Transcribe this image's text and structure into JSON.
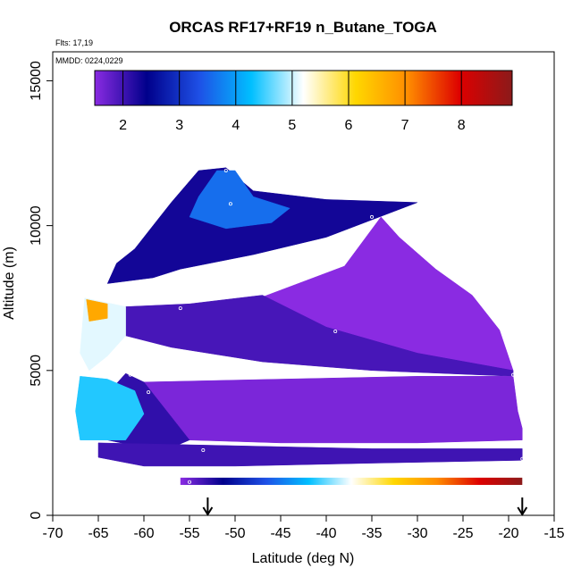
{
  "chart_data": {
    "type": "heatmap",
    "title": "ORCAS RF17+RF19 n_Butane_TOGA",
    "annotations": [
      "Flts: 17,19",
      "MMDD: 0224,0229"
    ],
    "xlabel": "Latitude (deg N)",
    "ylabel": "Altitude (m)",
    "xlim": [
      -70,
      -15
    ],
    "ylim": [
      0,
      16000
    ],
    "x_ticks": [
      -70,
      -65,
      -60,
      -55,
      -50,
      -45,
      -40,
      -35,
      -30,
      -25,
      -20,
      -15
    ],
    "y_ticks": [
      0,
      5000,
      10000,
      15000
    ],
    "colorbar": {
      "range": [
        1.5,
        8.9
      ],
      "ticks": [
        2,
        3,
        4,
        5,
        6,
        7,
        8
      ],
      "colors": [
        "#8a2be2",
        "#00008b",
        "#1e50e6",
        "#00bfff",
        "#ffffff",
        "#ffd700",
        "#ff8c00",
        "#dd0000",
        "#8b1a1a"
      ]
    },
    "sample_points": [
      {
        "x": -51,
        "y": 11900
      },
      {
        "x": -50.5,
        "y": 10750
      },
      {
        "x": -35,
        "y": 10300
      },
      {
        "x": -56,
        "y": 7150
      },
      {
        "x": -39,
        "y": 6350
      },
      {
        "x": -61.5,
        "y": 4850
      },
      {
        "x": -59.5,
        "y": 4250
      },
      {
        "x": -19.5,
        "y": 4850
      },
      {
        "x": -53.5,
        "y": 2250
      },
      {
        "x": -18.5,
        "y": 1950
      },
      {
        "x": -18.5,
        "y": 1650
      },
      {
        "x": -55,
        "y": 1150
      }
    ],
    "arrow_markers": [
      -53,
      -18.5
    ],
    "regions": [
      {
        "value": 2.3,
        "polygon": [
          [
            -54,
            11900
          ],
          [
            -51,
            12000
          ],
          [
            -48,
            11200
          ],
          [
            -40,
            10900
          ],
          [
            -30,
            10800
          ],
          [
            -40,
            9600
          ],
          [
            -48,
            9000
          ],
          [
            -56,
            8500
          ],
          [
            -59,
            8200
          ],
          [
            -64,
            8000
          ],
          [
            -63,
            8700
          ],
          [
            -61,
            9200
          ],
          [
            -59,
            10000
          ],
          [
            -57,
            10800
          ]
        ]
      },
      {
        "value": 3.6,
        "polygon": [
          [
            -52,
            11900
          ],
          [
            -50,
            11900
          ],
          [
            -48,
            11000
          ],
          [
            -44,
            10600
          ],
          [
            -46,
            10100
          ],
          [
            -51,
            9900
          ],
          [
            -55,
            10300
          ],
          [
            -54,
            11000
          ]
        ]
      },
      {
        "value": 1.5,
        "polygon": [
          [
            -34,
            10300
          ],
          [
            -32,
            9600
          ],
          [
            -28,
            8500
          ],
          [
            -24,
            7600
          ],
          [
            -21,
            6400
          ],
          [
            -19.5,
            5000
          ],
          [
            -30,
            5400
          ],
          [
            -40,
            6000
          ],
          [
            -49,
            7300
          ],
          [
            -38,
            8600
          ]
        ]
      },
      {
        "value": 1.95,
        "polygon": [
          [
            -62,
            7200
          ],
          [
            -55,
            7300
          ],
          [
            -47,
            7600
          ],
          [
            -40,
            6500
          ],
          [
            -30,
            5600
          ],
          [
            -19.5,
            5000
          ],
          [
            -19.5,
            4800
          ],
          [
            -35,
            5000
          ],
          [
            -47,
            5300
          ],
          [
            -57,
            5800
          ],
          [
            -62,
            6200
          ]
        ]
      },
      {
        "value": 1.6,
        "polygon": [
          [
            -60,
            4600
          ],
          [
            -45,
            4700
          ],
          [
            -30,
            4800
          ],
          [
            -19.5,
            4800
          ],
          [
            -19,
            3600
          ],
          [
            -18.5,
            3000
          ],
          [
            -18.5,
            2600
          ],
          [
            -30,
            2500
          ],
          [
            -45,
            2500
          ],
          [
            -55,
            2600
          ]
        ]
      },
      {
        "value": 2.1,
        "polygon": [
          [
            -62,
            4900
          ],
          [
            -60,
            4600
          ],
          [
            -55,
            2600
          ],
          [
            -58,
            2200
          ],
          [
            -64,
            2600
          ],
          [
            -66,
            3500
          ]
        ]
      },
      {
        "value": 5.1,
        "polygon": [
          [
            -66.5,
            7500
          ],
          [
            -62,
            7200
          ],
          [
            -62,
            6200
          ],
          [
            -64,
            5500
          ],
          [
            -66,
            5000
          ],
          [
            -67,
            5600
          ]
        ]
      },
      {
        "value": 6.7,
        "polygon": [
          [
            -66.3,
            7450
          ],
          [
            -64,
            7300
          ],
          [
            -64,
            6800
          ],
          [
            -66,
            6700
          ]
        ]
      },
      {
        "value": 4.4,
        "polygon": [
          [
            -67,
            4800
          ],
          [
            -64,
            4700
          ],
          [
            -61,
            4300
          ],
          [
            -60,
            3500
          ],
          [
            -62,
            2600
          ],
          [
            -67,
            2600
          ],
          [
            -67.5,
            3600
          ]
        ]
      },
      {
        "value": 2.0,
        "polygon": [
          [
            -65,
            2500
          ],
          [
            -50,
            2400
          ],
          [
            -35,
            2300
          ],
          [
            -18.5,
            2300
          ],
          [
            -18.5,
            1900
          ],
          [
            -35,
            1800
          ],
          [
            -50,
            1700
          ],
          [
            -60,
            1700
          ],
          [
            -65,
            2000
          ]
        ]
      }
    ]
  }
}
